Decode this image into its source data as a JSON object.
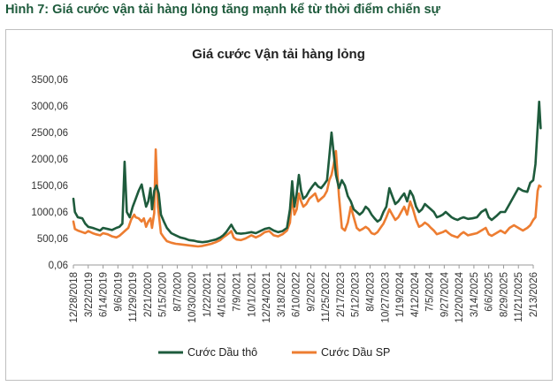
{
  "figure_caption": "Hình 7: Giá cước vận tải hàng lỏng tăng mạnh kể từ thời điểm chiến sự",
  "chart_data": {
    "type": "line",
    "title": "Giá cước Vận tải hàng lỏng",
    "xlabel": "",
    "ylabel": "",
    "ylim": [
      0.06,
      3500.06
    ],
    "y_ticks": [
      "0,06",
      "500,06",
      "1000,06",
      "1500,06",
      "2000,06",
      "2500,06",
      "3000,06",
      "3500,06"
    ],
    "y_tick_values": [
      0.06,
      500.06,
      1000.06,
      1500.06,
      2000.06,
      2500.06,
      3000.06,
      3500.06
    ],
    "x_ticks": [
      "12/28/2018",
      "3/22/2019",
      "6/14/2019",
      "9/6/2019",
      "11/29/2019",
      "2/21/2020",
      "5/15/2020",
      "8/7/2020",
      "10/30/2020",
      "1/22/2021",
      "4/16/2021",
      "7/9/2021",
      "10/1/2021",
      "12/24/2021",
      "3/18/2022",
      "6/10/2022",
      "9/2/2022",
      "11/25/2022",
      "2/17/2023",
      "5/12/2023",
      "8/4/2023",
      "10/27/2023",
      "1/19/2024",
      "4/12/2024",
      "7/5/2024",
      "9/27/2024",
      "12/20/2024",
      "3/14/2025",
      "6/6/2025",
      "8/29/2025",
      "11/21/2025",
      "2/13/2026"
    ],
    "grid": false,
    "legend_position": "bottom",
    "series": [
      {
        "name": "Cước Dầu thô",
        "color": "#1e5b3c",
        "points": [
          [
            0.0,
            1250
          ],
          [
            0.1,
            1000
          ],
          [
            0.3,
            900
          ],
          [
            0.6,
            880
          ],
          [
            0.8,
            780
          ],
          [
            1.0,
            720
          ],
          [
            1.3,
            700
          ],
          [
            1.5,
            680
          ],
          [
            1.8,
            650
          ],
          [
            2.0,
            700
          ],
          [
            2.3,
            680
          ],
          [
            2.6,
            660
          ],
          [
            2.9,
            700
          ],
          [
            3.1,
            720
          ],
          [
            3.3,
            780
          ],
          [
            3.45,
            1950
          ],
          [
            3.6,
            1000
          ],
          [
            3.8,
            900
          ],
          [
            4.0,
            1100
          ],
          [
            4.2,
            1250
          ],
          [
            4.4,
            1400
          ],
          [
            4.6,
            1520
          ],
          [
            4.75,
            1300
          ],
          [
            4.9,
            1100
          ],
          [
            5.05,
            1200
          ],
          [
            5.2,
            1450
          ],
          [
            5.3,
            1050
          ],
          [
            5.45,
            1400
          ],
          [
            5.6,
            1500
          ],
          [
            5.75,
            1350
          ],
          [
            5.9,
            950
          ],
          [
            6.1,
            820
          ],
          [
            6.3,
            700
          ],
          [
            6.6,
            600
          ],
          [
            6.9,
            560
          ],
          [
            7.2,
            520
          ],
          [
            7.5,
            500
          ],
          [
            7.8,
            470
          ],
          [
            8.1,
            460
          ],
          [
            8.4,
            440
          ],
          [
            8.7,
            430
          ],
          [
            9.0,
            440
          ],
          [
            9.3,
            460
          ],
          [
            9.6,
            480
          ],
          [
            9.9,
            520
          ],
          [
            10.1,
            560
          ],
          [
            10.3,
            620
          ],
          [
            10.5,
            700
          ],
          [
            10.65,
            760
          ],
          [
            10.8,
            680
          ],
          [
            11.0,
            600
          ],
          [
            11.3,
            590
          ],
          [
            11.6,
            600
          ],
          [
            12.0,
            620
          ],
          [
            12.3,
            600
          ],
          [
            12.6,
            640
          ],
          [
            12.9,
            680
          ],
          [
            13.2,
            700
          ],
          [
            13.5,
            650
          ],
          [
            13.8,
            620
          ],
          [
            14.1,
            640
          ],
          [
            14.4,
            700
          ],
          [
            14.6,
            1050
          ],
          [
            14.75,
            1580
          ],
          [
            14.9,
            1100
          ],
          [
            15.05,
            1350
          ],
          [
            15.2,
            1700
          ],
          [
            15.35,
            1400
          ],
          [
            15.5,
            1250
          ],
          [
            15.7,
            1300
          ],
          [
            15.9,
            1400
          ],
          [
            16.1,
            1480
          ],
          [
            16.3,
            1550
          ],
          [
            16.5,
            1480
          ],
          [
            16.7,
            1450
          ],
          [
            16.9,
            1520
          ],
          [
            17.1,
            1600
          ],
          [
            17.25,
            2050
          ],
          [
            17.4,
            2500
          ],
          [
            17.55,
            2100
          ],
          [
            17.7,
            1700
          ],
          [
            17.9,
            1450
          ],
          [
            18.1,
            1600
          ],
          [
            18.3,
            1500
          ],
          [
            18.5,
            1300
          ],
          [
            18.7,
            1200
          ],
          [
            18.9,
            1050
          ],
          [
            19.1,
            1000
          ],
          [
            19.3,
            950
          ],
          [
            19.5,
            1000
          ],
          [
            19.7,
            1100
          ],
          [
            19.9,
            1050
          ],
          [
            20.1,
            950
          ],
          [
            20.3,
            880
          ],
          [
            20.5,
            820
          ],
          [
            20.7,
            860
          ],
          [
            20.9,
            1000
          ],
          [
            21.1,
            1100
          ],
          [
            21.3,
            1450
          ],
          [
            21.5,
            1300
          ],
          [
            21.7,
            1150
          ],
          [
            21.9,
            1200
          ],
          [
            22.1,
            1280
          ],
          [
            22.3,
            1350
          ],
          [
            22.5,
            1200
          ],
          [
            22.7,
            1400
          ],
          [
            22.9,
            1300
          ],
          [
            23.1,
            1100
          ],
          [
            23.3,
            1000
          ],
          [
            23.5,
            1050
          ],
          [
            23.7,
            1150
          ],
          [
            23.9,
            1100
          ],
          [
            24.1,
            1050
          ],
          [
            24.3,
            1000
          ],
          [
            24.5,
            900
          ],
          [
            24.7,
            920
          ],
          [
            24.9,
            950
          ],
          [
            25.1,
            1000
          ],
          [
            25.3,
            950
          ],
          [
            25.5,
            900
          ],
          [
            25.7,
            870
          ],
          [
            25.9,
            850
          ],
          [
            26.1,
            880
          ],
          [
            26.3,
            900
          ],
          [
            26.6,
            870
          ],
          [
            26.9,
            880
          ],
          [
            27.2,
            900
          ],
          [
            27.5,
            1000
          ],
          [
            27.8,
            1050
          ],
          [
            28.0,
            900
          ],
          [
            28.2,
            850
          ],
          [
            28.5,
            920
          ],
          [
            28.8,
            1000
          ],
          [
            29.1,
            1000
          ],
          [
            29.4,
            1150
          ],
          [
            29.7,
            1300
          ],
          [
            30.0,
            1450
          ],
          [
            30.3,
            1400
          ],
          [
            30.6,
            1380
          ],
          [
            30.8,
            1550
          ],
          [
            31.0,
            1600
          ],
          [
            31.15,
            1900
          ],
          [
            31.3,
            2600
          ],
          [
            31.4,
            3080
          ],
          [
            31.5,
            2580
          ]
        ]
      },
      {
        "name": "Cước Dầu SP",
        "color": "#ed7d31",
        "points": [
          [
            0.0,
            820
          ],
          [
            0.1,
            680
          ],
          [
            0.3,
            650
          ],
          [
            0.6,
            620
          ],
          [
            0.8,
            600
          ],
          [
            1.0,
            640
          ],
          [
            1.3,
            600
          ],
          [
            1.5,
            580
          ],
          [
            1.8,
            560
          ],
          [
            2.0,
            600
          ],
          [
            2.3,
            580
          ],
          [
            2.6,
            540
          ],
          [
            2.9,
            520
          ],
          [
            3.1,
            550
          ],
          [
            3.3,
            600
          ],
          [
            3.5,
            650
          ],
          [
            3.7,
            700
          ],
          [
            3.9,
            860
          ],
          [
            4.1,
            950
          ],
          [
            4.2,
            900
          ],
          [
            4.4,
            880
          ],
          [
            4.6,
            820
          ],
          [
            4.75,
            880
          ],
          [
            4.9,
            720
          ],
          [
            5.05,
            820
          ],
          [
            5.2,
            880
          ],
          [
            5.3,
            700
          ],
          [
            5.45,
            980
          ],
          [
            5.55,
            2180
          ],
          [
            5.7,
            1100
          ],
          [
            5.9,
            600
          ],
          [
            6.1,
            520
          ],
          [
            6.3,
            450
          ],
          [
            6.6,
            420
          ],
          [
            6.9,
            400
          ],
          [
            7.2,
            390
          ],
          [
            7.5,
            380
          ],
          [
            7.8,
            370
          ],
          [
            8.1,
            360
          ],
          [
            8.4,
            350
          ],
          [
            8.7,
            360
          ],
          [
            9.0,
            380
          ],
          [
            9.3,
            400
          ],
          [
            9.6,
            430
          ],
          [
            9.9,
            470
          ],
          [
            10.1,
            520
          ],
          [
            10.3,
            560
          ],
          [
            10.5,
            600
          ],
          [
            10.65,
            640
          ],
          [
            10.8,
            520
          ],
          [
            11.0,
            480
          ],
          [
            11.3,
            470
          ],
          [
            11.6,
            500
          ],
          [
            12.0,
            560
          ],
          [
            12.3,
            520
          ],
          [
            12.6,
            560
          ],
          [
            12.9,
            620
          ],
          [
            13.2,
            640
          ],
          [
            13.5,
            560
          ],
          [
            13.8,
            540
          ],
          [
            14.1,
            580
          ],
          [
            14.4,
            650
          ],
          [
            14.6,
            800
          ],
          [
            14.75,
            1300
          ],
          [
            14.9,
            950
          ],
          [
            15.05,
            1050
          ],
          [
            15.2,
            1350
          ],
          [
            15.35,
            1200
          ],
          [
            15.5,
            1100
          ],
          [
            15.7,
            1150
          ],
          [
            15.9,
            1250
          ],
          [
            16.1,
            1300
          ],
          [
            16.3,
            1350
          ],
          [
            16.5,
            1200
          ],
          [
            16.7,
            1250
          ],
          [
            16.9,
            1300
          ],
          [
            17.1,
            1400
          ],
          [
            17.25,
            1600
          ],
          [
            17.4,
            1700
          ],
          [
            17.55,
            1900
          ],
          [
            17.7,
            2150
          ],
          [
            17.9,
            1300
          ],
          [
            18.1,
            700
          ],
          [
            18.3,
            650
          ],
          [
            18.5,
            800
          ],
          [
            18.7,
            1100
          ],
          [
            18.9,
            900
          ],
          [
            19.1,
            700
          ],
          [
            19.3,
            650
          ],
          [
            19.5,
            680
          ],
          [
            19.7,
            720
          ],
          [
            19.9,
            680
          ],
          [
            20.1,
            600
          ],
          [
            20.3,
            580
          ],
          [
            20.5,
            620
          ],
          [
            20.7,
            700
          ],
          [
            20.9,
            780
          ],
          [
            21.1,
            900
          ],
          [
            21.3,
            1050
          ],
          [
            21.5,
            950
          ],
          [
            21.7,
            850
          ],
          [
            21.9,
            900
          ],
          [
            22.1,
            1000
          ],
          [
            22.3,
            1100
          ],
          [
            22.5,
            950
          ],
          [
            22.7,
            1200
          ],
          [
            22.9,
            1050
          ],
          [
            23.1,
            850
          ],
          [
            23.3,
            720
          ],
          [
            23.5,
            750
          ],
          [
            23.7,
            800
          ],
          [
            23.9,
            760
          ],
          [
            24.1,
            700
          ],
          [
            24.3,
            650
          ],
          [
            24.5,
            580
          ],
          [
            24.7,
            600
          ],
          [
            24.9,
            620
          ],
          [
            25.1,
            650
          ],
          [
            25.3,
            600
          ],
          [
            25.5,
            560
          ],
          [
            25.7,
            540
          ],
          [
            25.9,
            520
          ],
          [
            26.1,
            580
          ],
          [
            26.3,
            620
          ],
          [
            26.6,
            560
          ],
          [
            26.9,
            580
          ],
          [
            27.2,
            600
          ],
          [
            27.5,
            650
          ],
          [
            27.8,
            700
          ],
          [
            28.0,
            580
          ],
          [
            28.2,
            550
          ],
          [
            28.5,
            600
          ],
          [
            28.8,
            650
          ],
          [
            29.1,
            600
          ],
          [
            29.4,
            700
          ],
          [
            29.7,
            750
          ],
          [
            30.0,
            700
          ],
          [
            30.3,
            650
          ],
          [
            30.6,
            700
          ],
          [
            30.8,
            750
          ],
          [
            31.0,
            850
          ],
          [
            31.15,
            900
          ],
          [
            31.3,
            1400
          ],
          [
            31.4,
            1500
          ],
          [
            31.5,
            1480
          ]
        ]
      }
    ]
  }
}
